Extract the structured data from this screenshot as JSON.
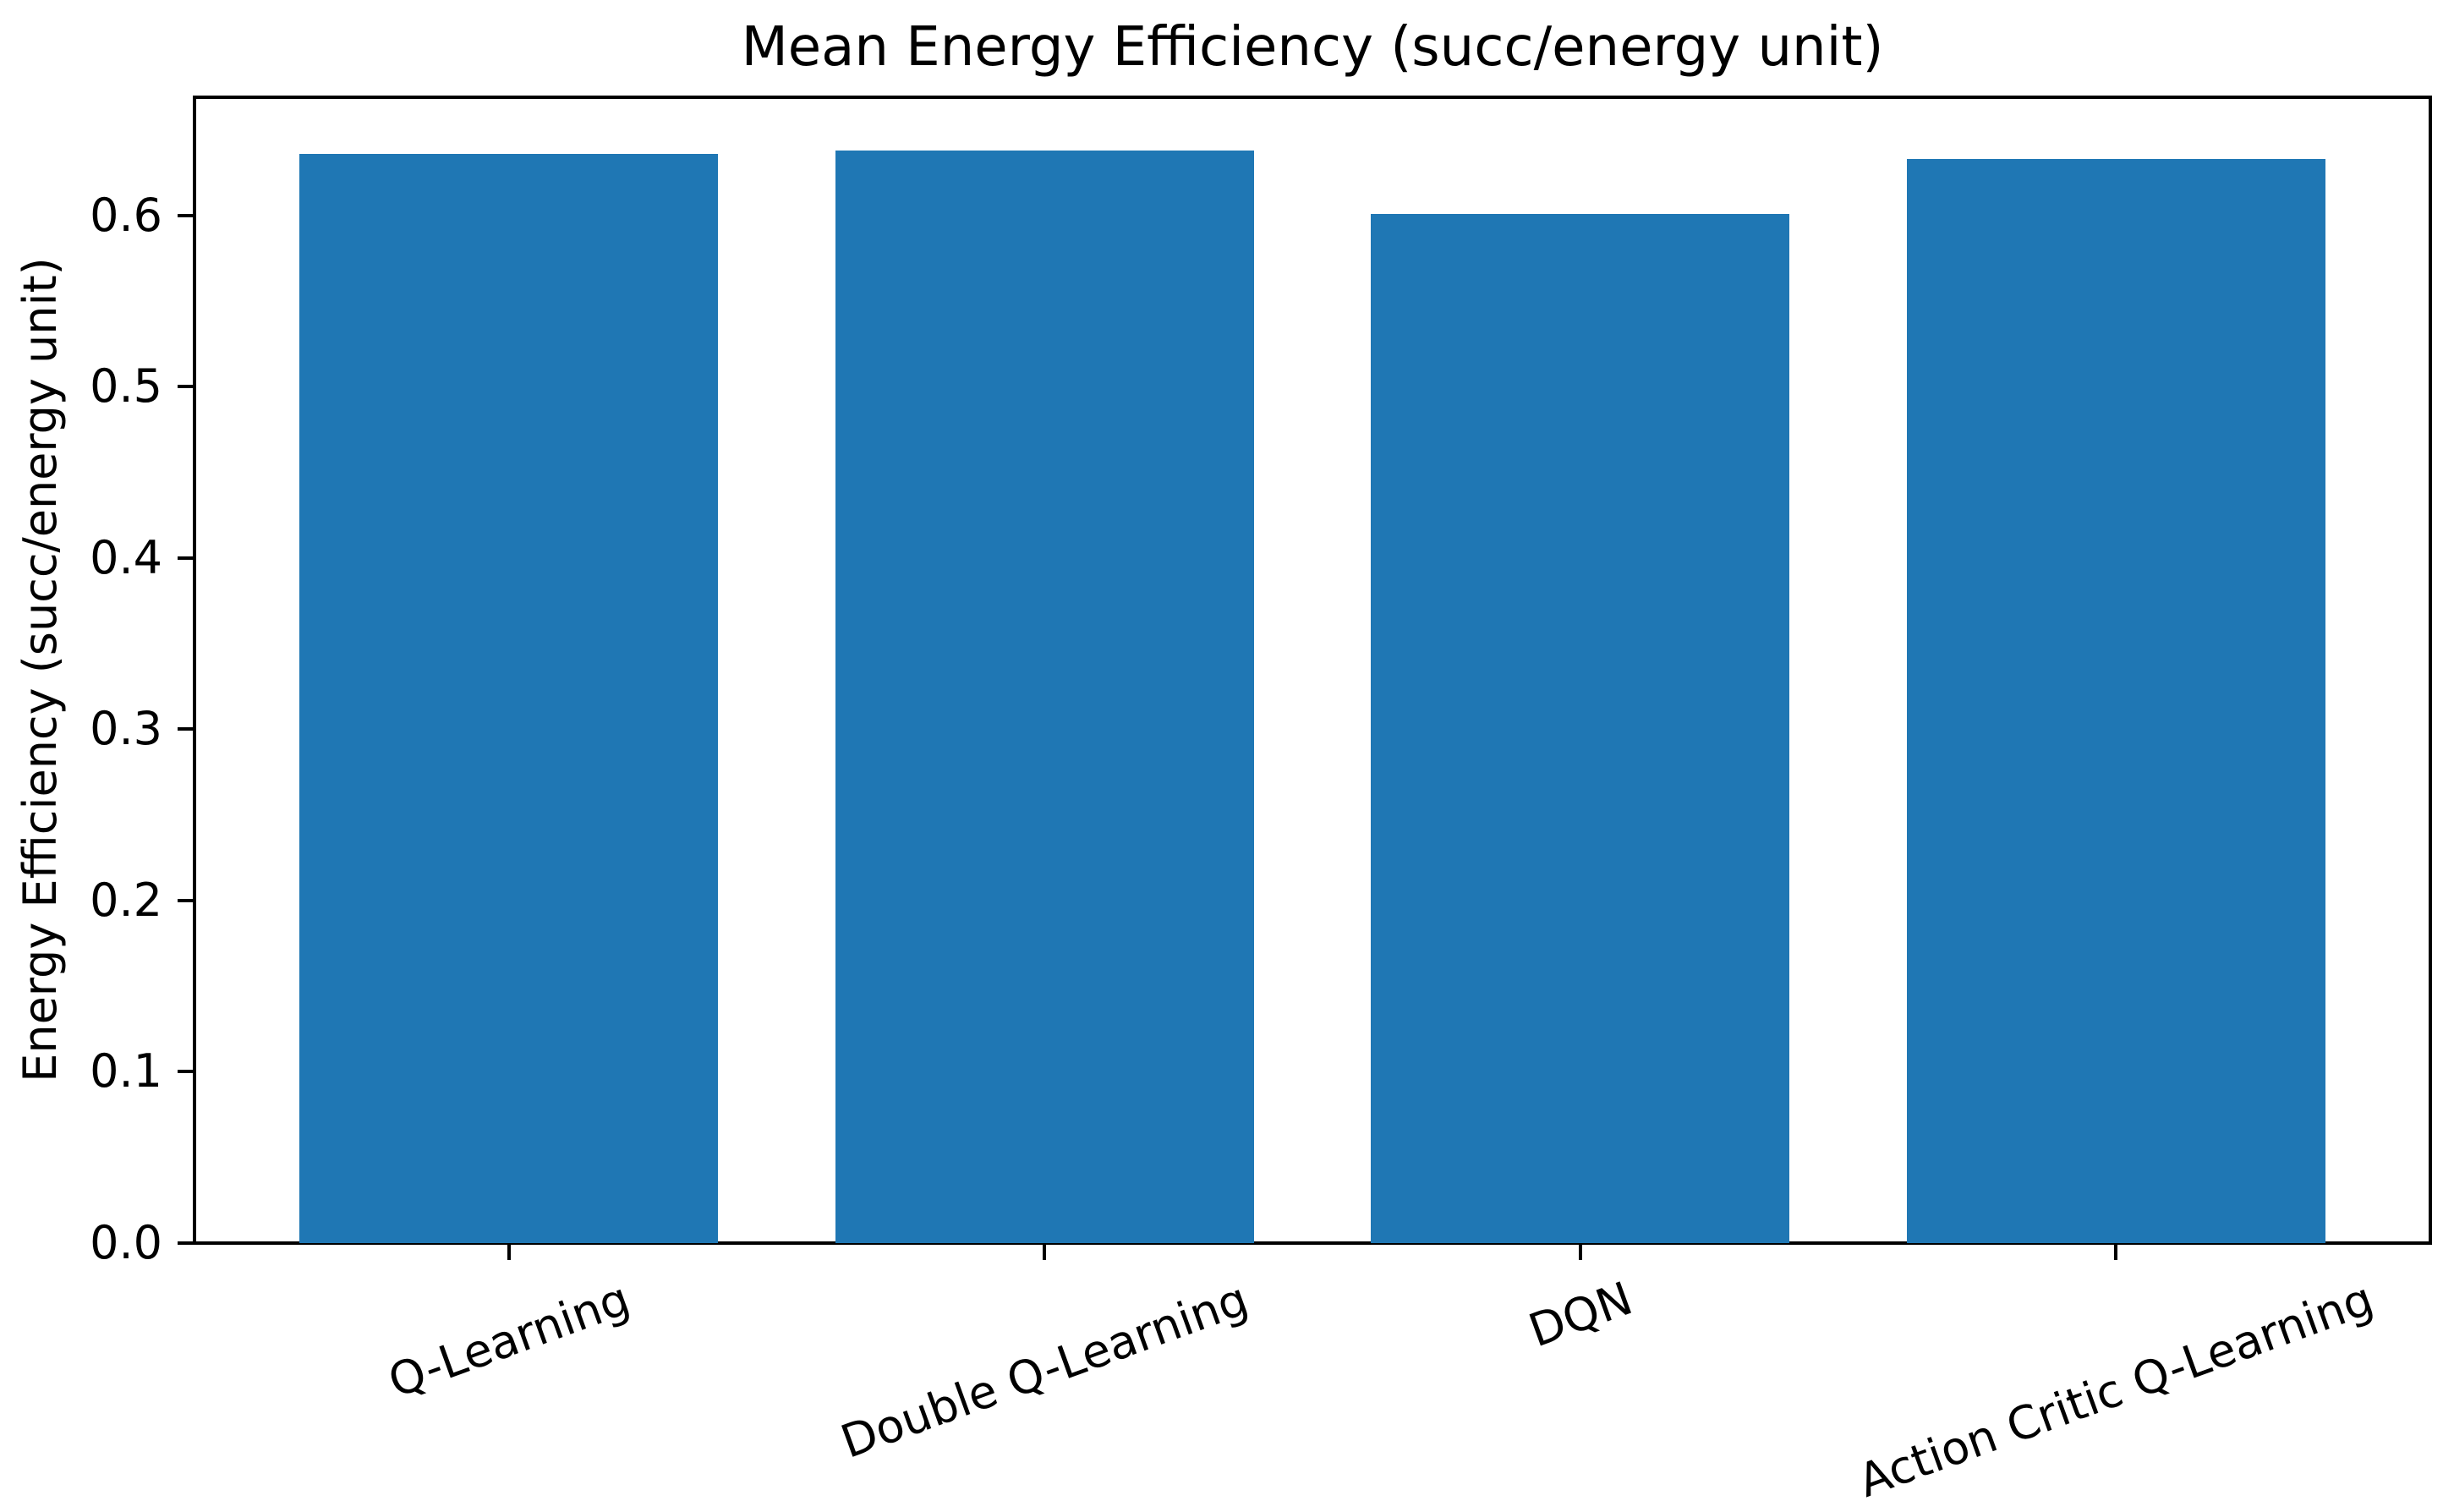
{
  "chart_data": {
    "type": "bar",
    "title": "Mean Energy Efficiency (succ/energy unit)",
    "ylabel": "Energy Efficiency (succ/energy unit)",
    "xlabel": "",
    "categories": [
      "Q-Learning",
      "Double Q-Learning",
      "DQN",
      "Action Critic Q-Learning"
    ],
    "values": [
      0.636,
      0.638,
      0.601,
      0.633
    ],
    "ytick_labels": [
      "0.0",
      "0.1",
      "0.2",
      "0.3",
      "0.4",
      "0.5",
      "0.6"
    ],
    "ytick_values": [
      0.0,
      0.1,
      0.2,
      0.3,
      0.4,
      0.5,
      0.6
    ],
    "ylim": [
      0.0,
      0.67
    ],
    "bar_width_fraction": 0.8,
    "x_tick_label_rotation_deg": 20,
    "grid": false,
    "legend": null,
    "colors": {
      "bar": "#1f77b4",
      "axis": "#000000",
      "text": "#000000",
      "background": "#ffffff"
    }
  }
}
